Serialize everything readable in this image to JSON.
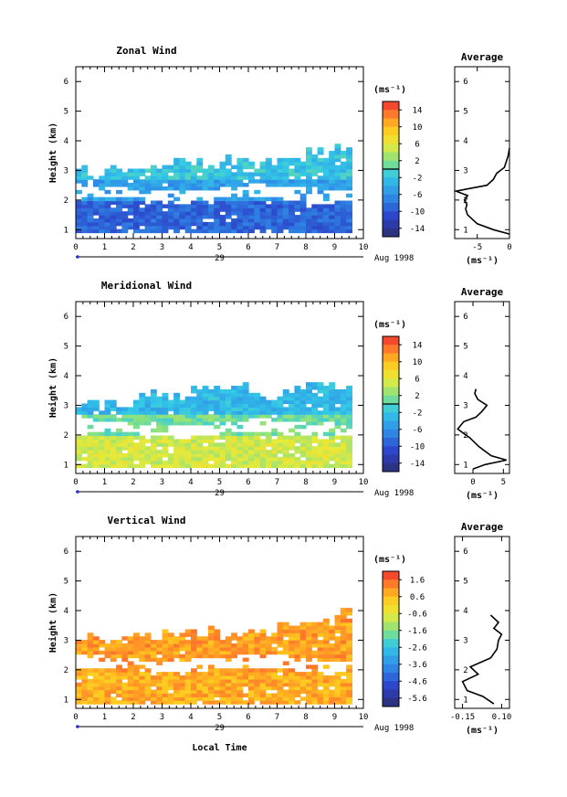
{
  "figure": {
    "x_axis_label": "Local Time",
    "date_label": "29",
    "month_label": "Aug 1998",
    "avg_title": "Average",
    "unit_label": "(ms⁻¹)"
  },
  "chart_data": [
    {
      "type": "heatmap",
      "title": "Zonal Wind",
      "xlabel": "",
      "ylabel": "Height (km)",
      "xlim": [
        0,
        10
      ],
      "ylim": [
        0.7,
        6.5
      ],
      "x_ticks": [
        "0",
        "1",
        "2",
        "3",
        "4",
        "5",
        "6",
        "7",
        "8",
        "9",
        "10"
      ],
      "y_ticks": [
        "1",
        "2",
        "3",
        "4",
        "5",
        "6"
      ],
      "colorbar": {
        "ticks": [
          "14",
          "10",
          "6",
          "2",
          "-2",
          "-6",
          "-10",
          "-14"
        ],
        "min": -16,
        "max": 16,
        "zero_line": true
      },
      "coverage": {
        "x_start": 0.0,
        "x_end": 9.45,
        "top_by_hour": [
          2.9,
          3.0,
          3.1,
          3.2,
          3.2,
          3.3,
          3.2,
          3.4,
          3.6,
          3.8
        ],
        "bottom": 0.9
      },
      "description_values": {
        "low_band_mean": -9,
        "mid_band_mean": -5,
        "upper_band_mean": -2
      },
      "average_profile": {
        "title": "Average",
        "xlabel": "(ms⁻¹)",
        "xlim": [
          -8.5,
          0
        ],
        "x_ticks": [
          "-5",
          "0"
        ],
        "heights": [
          0.85,
          1.0,
          1.2,
          1.5,
          1.7,
          1.85,
          2.0,
          2.15,
          2.3,
          2.5,
          2.7,
          2.9,
          3.1,
          3.3,
          3.5,
          3.75
        ],
        "values": [
          0.0,
          -2.5,
          -5.0,
          -6.5,
          -6.8,
          -6.6,
          -7.0,
          -6.5,
          -8.3,
          -3.5,
          -2.5,
          -2.0,
          -0.8,
          -0.5,
          -0.2,
          0.0
        ]
      }
    },
    {
      "type": "heatmap",
      "title": "Meridional Wind",
      "xlabel": "",
      "ylabel": "Height (km)",
      "xlim": [
        0,
        10
      ],
      "ylim": [
        0.7,
        6.5
      ],
      "x_ticks": [
        "0",
        "1",
        "2",
        "3",
        "4",
        "5",
        "6",
        "7",
        "8",
        "9",
        "10"
      ],
      "y_ticks": [
        "1",
        "2",
        "3",
        "4",
        "5",
        "6"
      ],
      "colorbar": {
        "ticks": [
          "14",
          "10",
          "6",
          "2",
          "-2",
          "-6",
          "-10",
          "-14"
        ],
        "min": -16,
        "max": 16,
        "zero_line": true
      },
      "coverage": {
        "x_start": 0.0,
        "x_end": 9.45,
        "top_by_hour": [
          3.0,
          3.0,
          3.3,
          3.3,
          3.5,
          3.5,
          3.2,
          3.4,
          3.6,
          3.6
        ],
        "bottom": 0.9
      },
      "description_values": {
        "low_band_mean": 5,
        "mid_band_mean": 1,
        "upper_band_mean": -3
      },
      "average_profile": {
        "title": "Average",
        "xlabel": "(ms⁻¹)",
        "xlim": [
          -3,
          6
        ],
        "x_ticks": [
          "0",
          "5"
        ],
        "heights": [
          0.85,
          1.0,
          1.15,
          1.3,
          1.6,
          1.9,
          2.2,
          2.45,
          2.6,
          2.8,
          3.0,
          3.2,
          3.4,
          3.55
        ],
        "values": [
          0.0,
          2.0,
          5.5,
          3.0,
          1.0,
          -0.5,
          -2.5,
          -1.5,
          0.5,
          1.5,
          2.3,
          0.8,
          0.3,
          0.5
        ]
      }
    },
    {
      "type": "heatmap",
      "title": "Vertical Wind",
      "xlabel": "Local Time",
      "ylabel": "Height (km)",
      "xlim": [
        0,
        10
      ],
      "ylim": [
        0.7,
        6.5
      ],
      "x_ticks": [
        "0",
        "1",
        "2",
        "3",
        "4",
        "5",
        "6",
        "7",
        "8",
        "9",
        "10"
      ],
      "y_ticks": [
        "1",
        "2",
        "3",
        "4",
        "5",
        "6"
      ],
      "colorbar": {
        "ticks": [
          "1.6",
          "0.6",
          "-0.6",
          "-1.6",
          "-2.6",
          "-3.6",
          "-4.6",
          "-5.6"
        ],
        "min": -6.2,
        "max": 2.2,
        "zero_line": false
      },
      "coverage": {
        "x_start": 0.0,
        "x_end": 9.45,
        "top_by_hour": [
          3.0,
          3.0,
          3.1,
          3.2,
          3.3,
          3.1,
          3.2,
          3.4,
          3.6,
          3.9
        ],
        "bottom": 0.85
      },
      "description_values": {
        "low_band_mean": 0.8,
        "mid_band_mean": 1.0,
        "upper_band_mean": 1.0
      },
      "average_profile": {
        "title": "Average",
        "xlabel": "(ms⁻¹)",
        "xlim": [
          -0.2,
          0.15
        ],
        "x_ticks": [
          "-0.15",
          "0.10"
        ],
        "heights": [
          0.85,
          1.1,
          1.3,
          1.6,
          1.85,
          2.1,
          2.4,
          2.7,
          3.0,
          3.2,
          3.4,
          3.6,
          3.85
        ],
        "values": [
          0.05,
          -0.02,
          -0.12,
          -0.15,
          -0.05,
          -0.1,
          0.03,
          0.07,
          0.08,
          0.1,
          0.05,
          0.08,
          0.03
        ]
      }
    }
  ]
}
